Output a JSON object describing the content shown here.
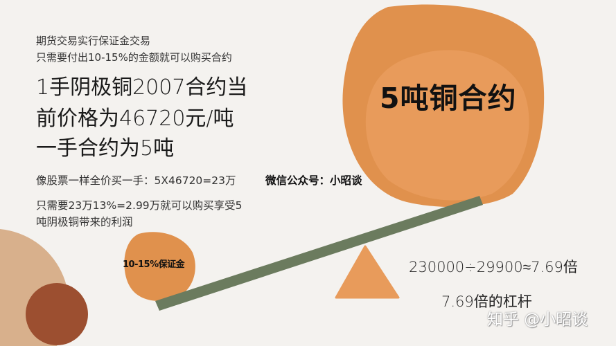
{
  "intro": {
    "line1": "期货交易实行保证金交易",
    "line2": "只需要付出10-15%的金额就可以购买合约"
  },
  "headline": {
    "line1": "1手阴极铜2007合约当",
    "line2": "前价格为46720元/吨",
    "line3": "一手合约为5吨"
  },
  "full_price_text": "像股票一样全价买一手：5X46720=23万",
  "wechat_text": "微信公众号：小昭谈",
  "margin_text": {
    "line1": "只需要23万13%=2.99万就可以购买享受5",
    "line2": "吨阴极铜带来的利润"
  },
  "contract_label": "5吨铜合约",
  "margin_label": "10-15%保证金",
  "formula": "230000÷29900≈7.69倍",
  "leverage": "7.69倍的杠杆",
  "watermark": "知乎 @小昭谈",
  "colors": {
    "background": "#f4f2ef",
    "orange": "#e0914d",
    "orange_light": "#e89b5b",
    "green_lever": "#6b7b5e",
    "tan": "#d8b08c",
    "brown": "#9c4f30"
  }
}
